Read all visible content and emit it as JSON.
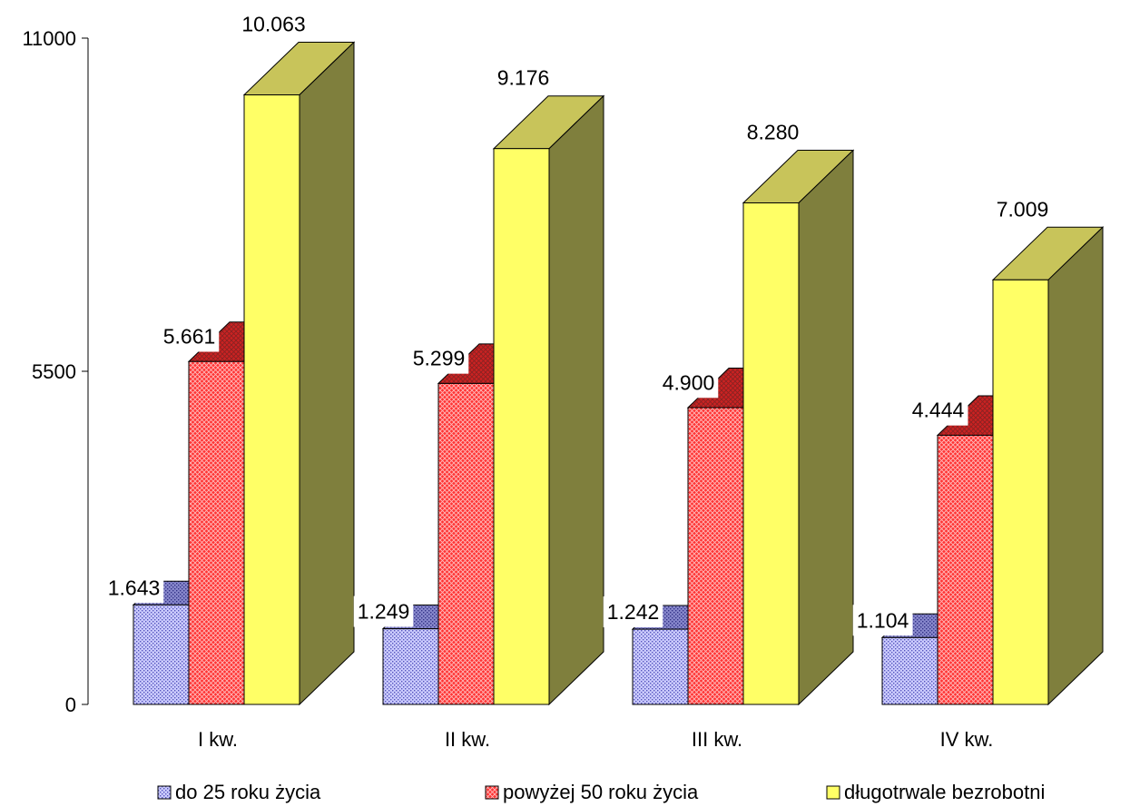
{
  "chart_data": {
    "type": "bar",
    "subtype": "3d-clustered",
    "categories": [
      "I kw.",
      "II kw.",
      "III kw.",
      "IV kw."
    ],
    "series": [
      {
        "name": "do 25 roku życia",
        "values": [
          1643,
          1249,
          1242,
          1104
        ],
        "labels": [
          "1.643",
          "1.249",
          "1.242",
          "1.104"
        ],
        "color": "#ccccff",
        "pattern": "dots"
      },
      {
        "name": "powyżej 50 roku życia",
        "values": [
          5661,
          5299,
          4900,
          4444
        ],
        "labels": [
          "5.661",
          "5.299",
          "4.900",
          "4.444"
        ],
        "color": "#ff3333",
        "pattern": "crosshatch"
      },
      {
        "name": "długotrwale bezrobotni",
        "values": [
          10063,
          9176,
          8280,
          7009
        ],
        "labels": [
          "10.063",
          "9.176",
          "8.280",
          "7.009"
        ],
        "color": "#ffff66",
        "pattern": "solid"
      }
    ],
    "y_ticks": [
      "0",
      "5500",
      "11000"
    ],
    "ylim": [
      0,
      11000
    ],
    "grid": false,
    "legend_position": "bottom"
  }
}
